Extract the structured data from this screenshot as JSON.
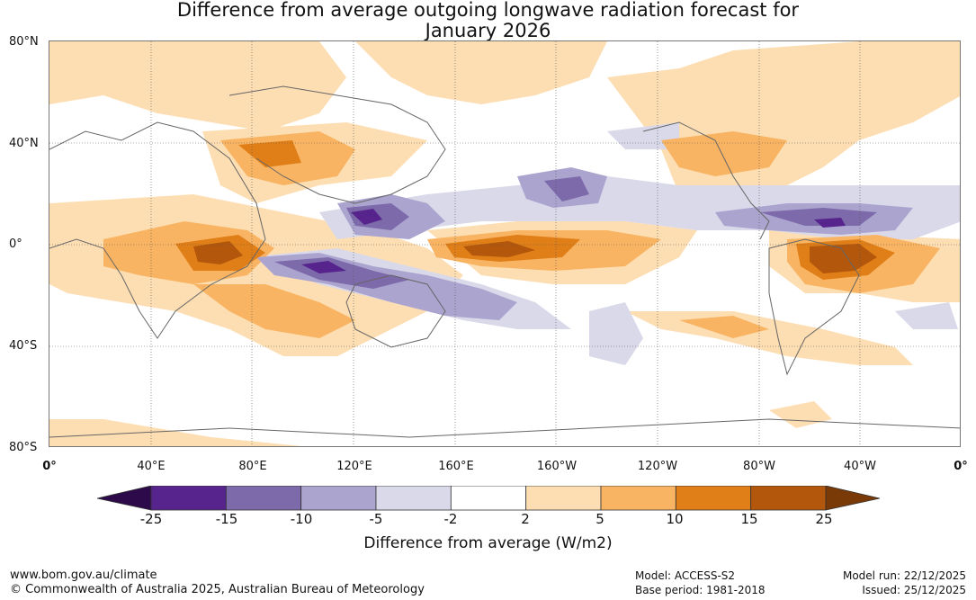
{
  "title_line1": "Difference from average outgoing longwave radiation forecast for",
  "title_line2": "January 2026",
  "lat_labels": [
    "80°N",
    "40°N",
    "0°",
    "40°S",
    "80°S"
  ],
  "lon_labels": [
    "0°",
    "40°E",
    "80°E",
    "120°E",
    "160°E",
    "160°W",
    "120°W",
    "80°W",
    "40°W",
    "0°"
  ],
  "colorbar": {
    "ticks": [
      "-25",
      "-15",
      "-10",
      "-5",
      "-2",
      "2",
      "5",
      "10",
      "15",
      "25"
    ],
    "colors": [
      "#2d0a4a",
      "#56248c",
      "#7d6aaa",
      "#aba4cf",
      "#d9d9ea",
      "#ffffff",
      "#fddeb3",
      "#f8b462",
      "#e07e17",
      "#b2570c",
      "#7a3a08"
    ],
    "label": "Difference from average (W/m2)"
  },
  "footer": {
    "website": "www.bom.gov.au/climate",
    "copyright": "© Commonwealth of Australia 2025, Australian Bureau of Meteorology",
    "model": "Model: ACCESS-S2",
    "base_period": "Base period: 1981-2018",
    "model_run": "Model run: 22/12/2025",
    "issued": "Issued: 25/12/2025"
  }
}
